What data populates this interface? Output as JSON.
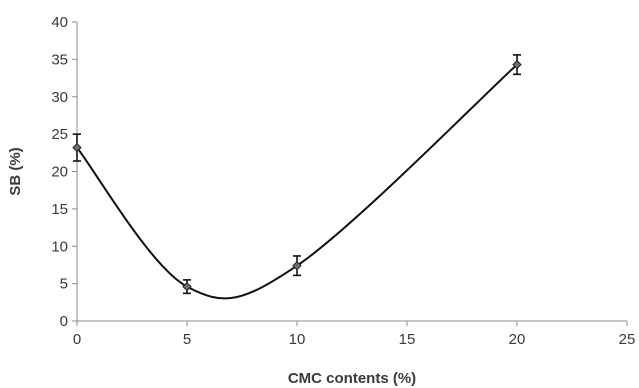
{
  "chart_data": {
    "type": "scatter",
    "title": "",
    "xlabel": "CMC contents (%)",
    "ylabel": "SB (%)",
    "xlim": [
      0,
      25
    ],
    "ylim": [
      0,
      40
    ],
    "xticks": [
      0,
      5,
      10,
      15,
      20,
      25
    ],
    "yticks": [
      0,
      5,
      10,
      15,
      20,
      25,
      30,
      35,
      40
    ],
    "grid": false,
    "legend": "none",
    "smooth_line": true,
    "marker": "diamond",
    "series": [
      {
        "x": [
          0,
          5,
          10,
          20
        ],
        "y": [
          23.2,
          4.6,
          7.4,
          34.3
        ],
        "error": [
          1.8,
          0.9,
          1.3,
          1.3
        ]
      }
    ],
    "colors": {
      "line": "#111111",
      "marker": "#6e6e6e",
      "axis": "#8c8c8c",
      "text": "#3a3a3a"
    }
  }
}
